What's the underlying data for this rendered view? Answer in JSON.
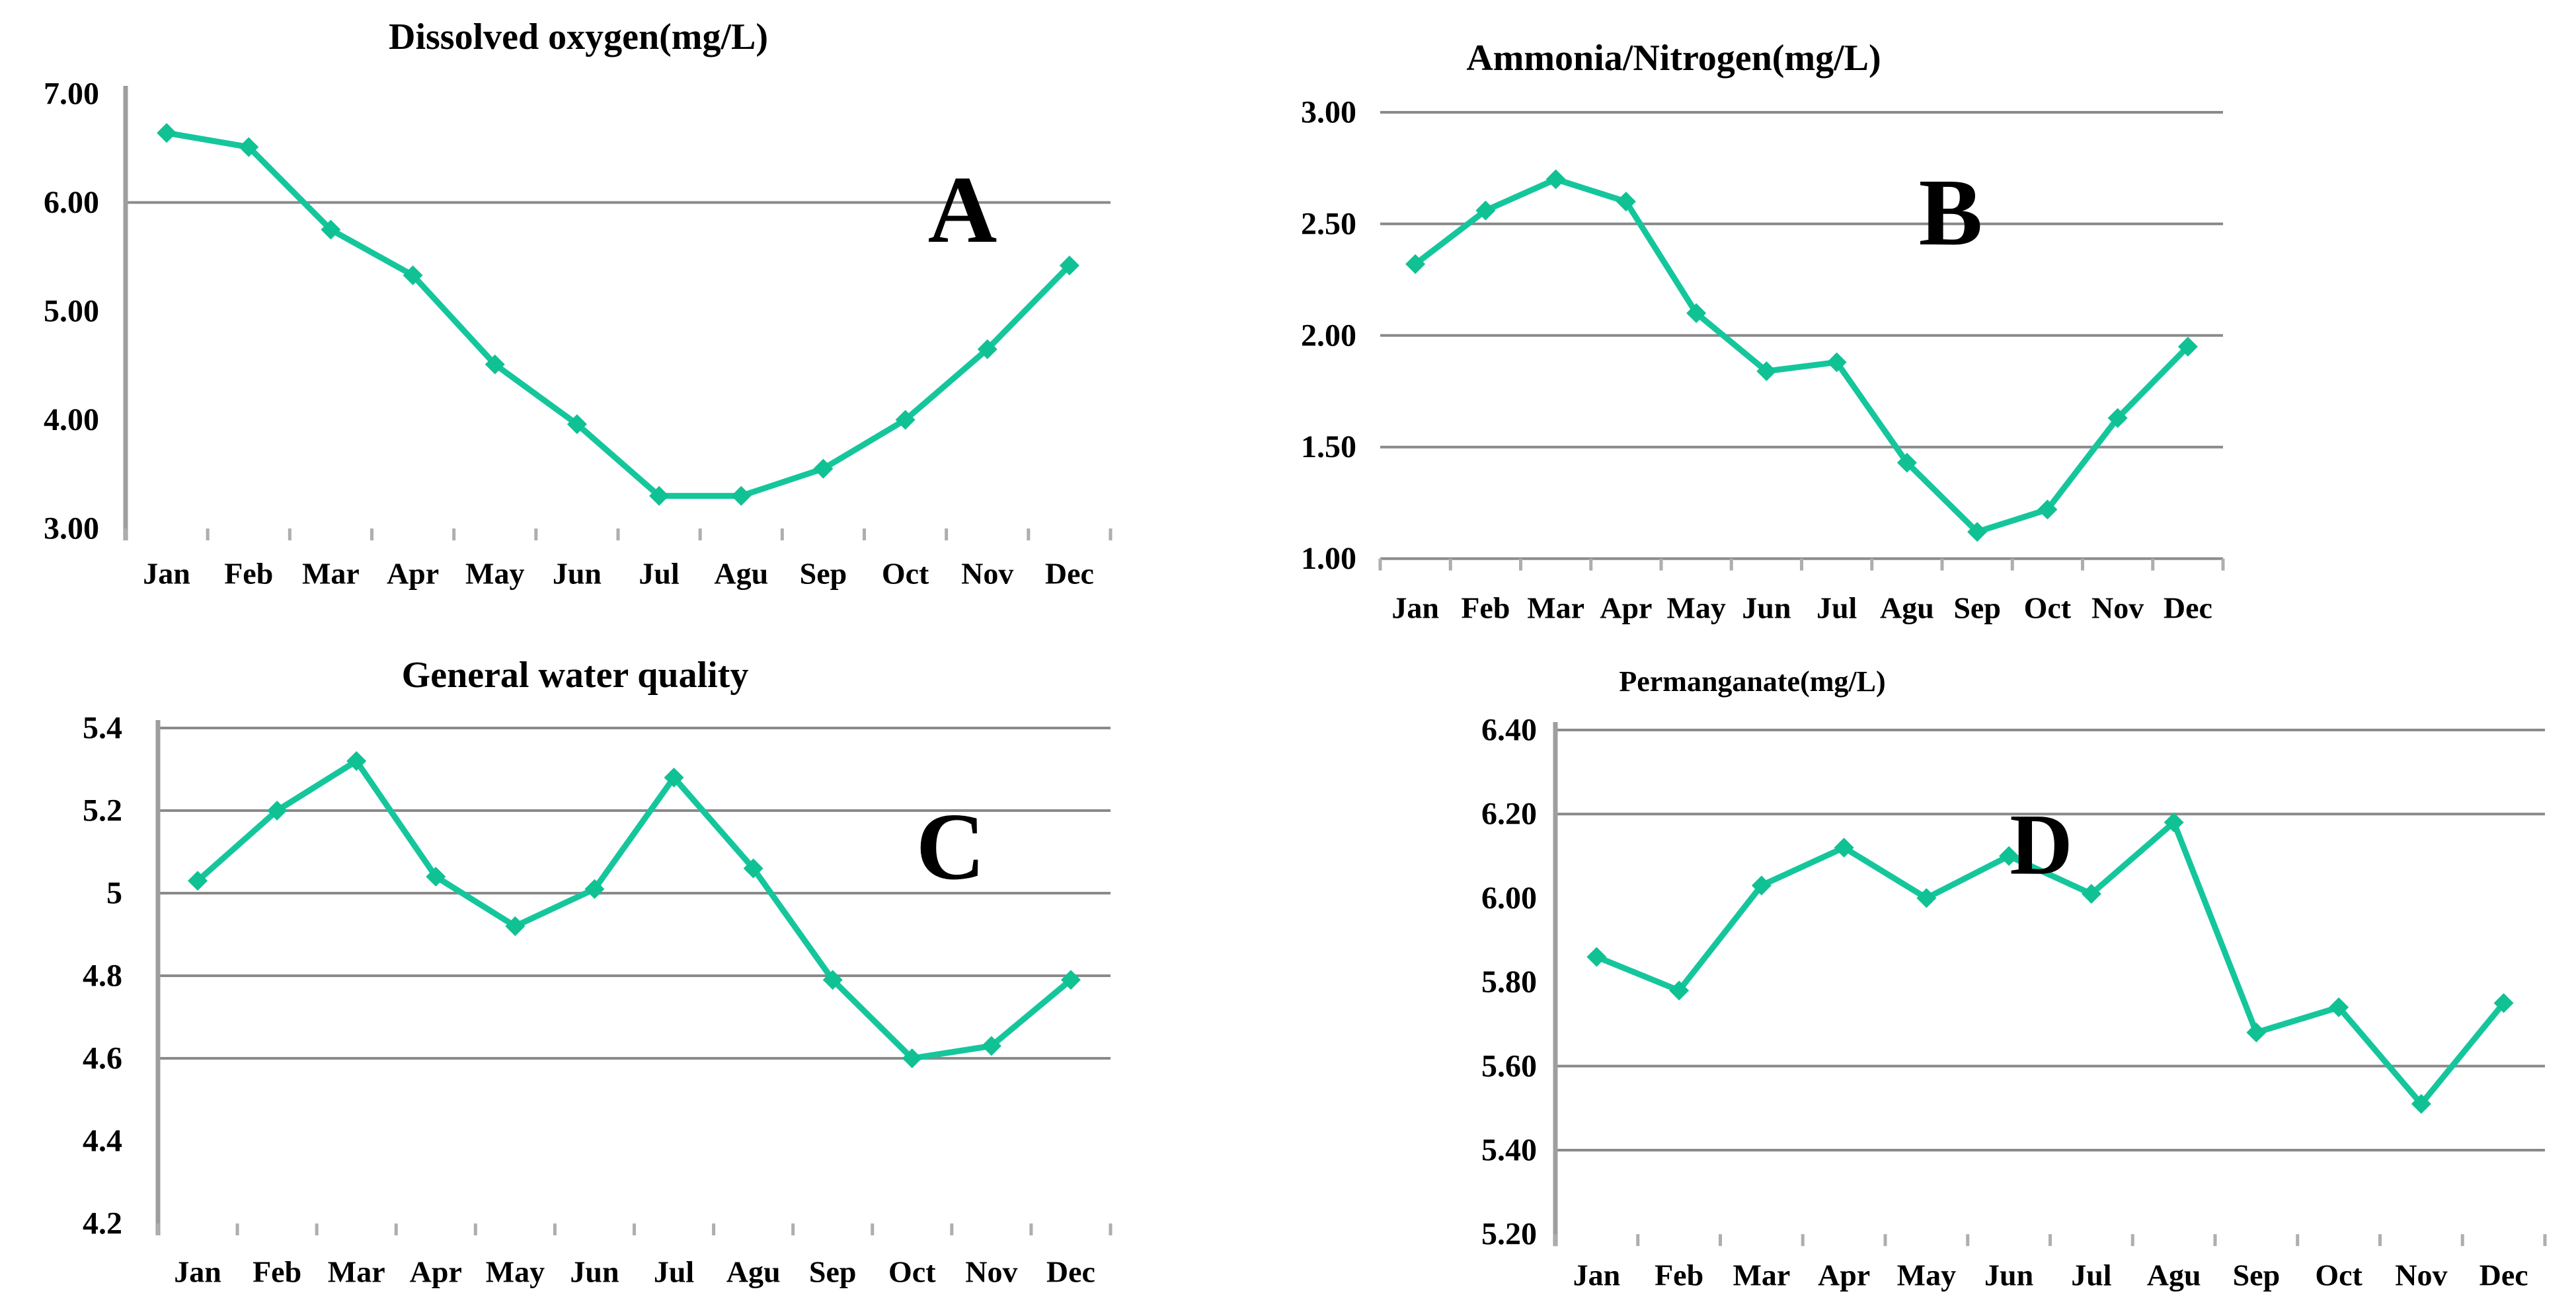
{
  "colors": {
    "series_line": "#15c69c",
    "series_marker": "#10c193",
    "gridline": "#8a8a8a",
    "axis_line": "#9e9e9e",
    "tick_mark": "#aeaeae",
    "text": "#000000",
    "background": "#ffffff"
  },
  "months": [
    "Jan",
    "Feb",
    "Mar",
    "Apr",
    "May",
    "Jun",
    "Jul",
    "Agu",
    "Sep",
    "Oct",
    "Nov",
    "Dec"
  ],
  "chart_data": [
    {
      "type": "line",
      "panel_label": "A",
      "title": "Dissolved oxygen(mg/L)",
      "categories": [
        "Jan",
        "Feb",
        "Mar",
        "Apr",
        "May",
        "Jun",
        "Jul",
        "Agu",
        "Sep",
        "Oct",
        "Nov",
        "Dec"
      ],
      "values": [
        6.64,
        6.51,
        5.75,
        5.33,
        4.51,
        3.96,
        3.3,
        3.3,
        3.55,
        4.0,
        4.65,
        5.42
      ],
      "xlabel": "",
      "ylabel": "",
      "ylim": [
        3.0,
        7.0
      ],
      "yticks": [
        {
          "label": "7.00",
          "v": 7.0
        },
        {
          "label": "6.00",
          "v": 6.0
        },
        {
          "label": "5.00",
          "v": 5.0
        },
        {
          "label": "4.00",
          "v": 4.0
        },
        {
          "label": "3.00",
          "v": 3.0
        }
      ],
      "gridlines_at": [
        6.0
      ],
      "has_y_axis_line": true,
      "legend": "none",
      "marker": "diamond"
    },
    {
      "type": "line",
      "panel_label": "B",
      "title": "Ammonia/Nitrogen(mg/L)",
      "categories": [
        "Jan",
        "Feb",
        "Mar",
        "Apr",
        "May",
        "Jun",
        "Jul",
        "Agu",
        "Sep",
        "Oct",
        "Nov",
        "Dec"
      ],
      "values": [
        2.32,
        2.56,
        2.7,
        2.6,
        2.1,
        1.84,
        1.88,
        1.43,
        1.12,
        1.22,
        1.63,
        1.95
      ],
      "xlabel": "",
      "ylabel": "",
      "ylim": [
        1.0,
        3.0
      ],
      "yticks": [
        {
          "label": "3.00",
          "v": 3.0
        },
        {
          "label": "2.50",
          "v": 2.5
        },
        {
          "label": "2.00",
          "v": 2.0
        },
        {
          "label": "1.50",
          "v": 1.5
        },
        {
          "label": "1.00",
          "v": 1.0
        }
      ],
      "gridlines_at": [
        3.0,
        2.5,
        2.0,
        1.5,
        1.0
      ],
      "has_y_axis_line": false,
      "legend": "none",
      "marker": "diamond"
    },
    {
      "type": "line",
      "panel_label": "C",
      "title": "General water quality",
      "categories": [
        "Jan",
        "Feb",
        "Mar",
        "Apr",
        "May",
        "Jun",
        "Jul",
        "Agu",
        "Sep",
        "Oct",
        "Nov",
        "Dec"
      ],
      "values": [
        5.03,
        5.2,
        5.32,
        5.04,
        4.92,
        5.01,
        5.28,
        5.06,
        4.79,
        4.6,
        4.63,
        4.79
      ],
      "xlabel": "",
      "ylabel": "",
      "ylim": [
        4.2,
        5.4
      ],
      "yticks": [
        {
          "label": "5.4",
          "v": 5.4
        },
        {
          "label": "5.2",
          "v": 5.2
        },
        {
          "label": "5",
          "v": 5.0
        },
        {
          "label": "4.8",
          "v": 4.8
        },
        {
          "label": "4.6",
          "v": 4.6
        },
        {
          "label": "4.4",
          "v": 4.4
        },
        {
          "label": "4.2",
          "v": 4.2
        }
      ],
      "gridlines_at": [
        5.4,
        5.2,
        5.0,
        4.8,
        4.6
      ],
      "has_y_axis_line": true,
      "legend": "none",
      "marker": "diamond"
    },
    {
      "type": "line",
      "panel_label": "D",
      "title": "Permanganate(mg/L)",
      "categories": [
        "Jan",
        "Feb",
        "Mar",
        "Apr",
        "May",
        "Jun",
        "Jul",
        "Agu",
        "Sep",
        "Oct",
        "Nov",
        "Dec"
      ],
      "values": [
        5.86,
        5.78,
        6.03,
        6.12,
        6.0,
        6.1,
        6.01,
        6.18,
        5.68,
        5.74,
        5.51,
        5.75
      ],
      "xlabel": "",
      "ylabel": "",
      "ylim": [
        5.2,
        6.4
      ],
      "yticks": [
        {
          "label": "6.40",
          "v": 6.4
        },
        {
          "label": "6.20",
          "v": 6.2
        },
        {
          "label": "6.00",
          "v": 6.0
        },
        {
          "label": "5.80",
          "v": 5.8
        },
        {
          "label": "5.60",
          "v": 5.6
        },
        {
          "label": "5.40",
          "v": 5.4
        },
        {
          "label": "5.20",
          "v": 5.2
        }
      ],
      "gridlines_at": [
        6.4,
        6.2,
        5.6,
        5.4
      ],
      "has_y_axis_line": true,
      "legend": "none",
      "marker": "diamond"
    }
  ]
}
